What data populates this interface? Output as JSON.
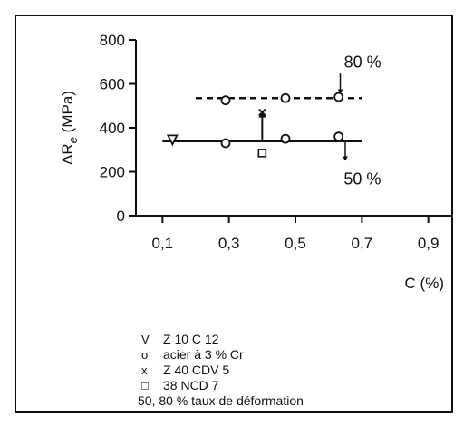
{
  "chart_data": {
    "type": "line",
    "xlabel": "C (%)",
    "ylabel_main": "ΔR",
    "ylabel_sub": "e",
    "ylabel_unit": " (MPa)",
    "xlim": [
      0.02,
      0.98
    ],
    "ylim": [
      0,
      800
    ],
    "x_ticks": [
      0.1,
      0.3,
      0.5,
      0.7,
      0.9
    ],
    "x_tick_labels": [
      "0,1",
      "0,3",
      "0,5",
      "0,7",
      "0,9"
    ],
    "y_ticks": [
      0,
      200,
      400,
      600,
      800
    ],
    "y_tick_labels": [
      "0",
      "200",
      "400",
      "600",
      "800"
    ],
    "grid": false,
    "series": [
      {
        "name": "80 %",
        "line_x": [
          0.2,
          0.7
        ],
        "line_y": [
          535,
          535
        ],
        "line_style": "dashed",
        "points": [
          {
            "marker": "circle",
            "x": 0.29,
            "y": 525
          },
          {
            "marker": "circle",
            "x": 0.47,
            "y": 535
          },
          {
            "marker": "circle",
            "x": 0.63,
            "y": 540
          }
        ]
      },
      {
        "name": "50 %",
        "line_x": [
          0.1,
          0.7
        ],
        "line_y": [
          340,
          340
        ],
        "line_style": "solid",
        "points": [
          {
            "marker": "triangle",
            "x": 0.13,
            "y": 345
          },
          {
            "marker": "circle",
            "x": 0.29,
            "y": 330
          },
          {
            "marker": "circle",
            "x": 0.47,
            "y": 350
          },
          {
            "marker": "circle",
            "x": 0.63,
            "y": 360
          }
        ]
      },
      {
        "name": "Z 40 CDV 5",
        "points": [
          {
            "marker": "cross",
            "x": 0.4,
            "y": 470
          },
          {
            "marker": "square",
            "x": 0.4,
            "y": 285
          }
        ]
      }
    ],
    "annotations": [
      {
        "text": "80 %",
        "x": 0.63,
        "y": 700
      },
      {
        "text": "50 %",
        "x": 0.64,
        "y": 175
      }
    ],
    "legend": [
      {
        "symbol": "V",
        "text": "Z 10 C 12"
      },
      {
        "symbol": "o",
        "text": "acier à 3 % Cr"
      },
      {
        "symbol": "x",
        "text": "Z 40 CDV 5"
      },
      {
        "symbol": "□",
        "text": "38 NCD 7"
      }
    ],
    "legend_note": "50, 80 % taux de déformation"
  }
}
